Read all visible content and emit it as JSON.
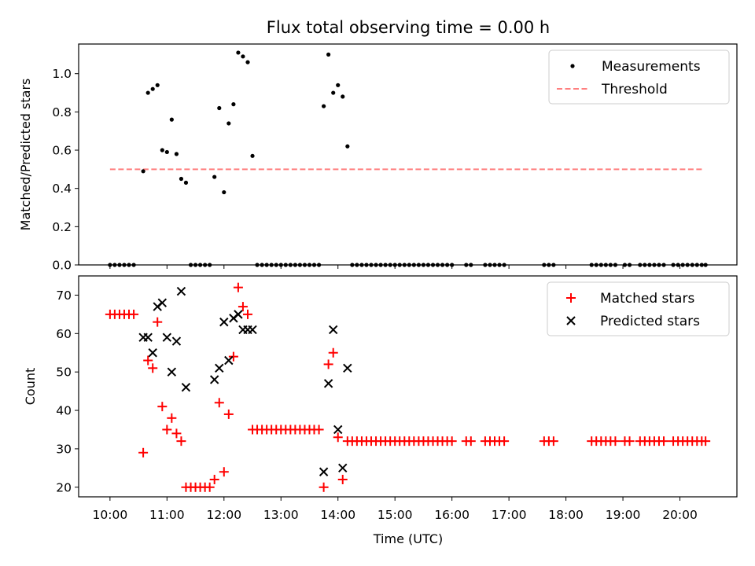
{
  "figure": {
    "title": "Flux total observing time = 0.00 h",
    "xlabel": "Time (UTC)"
  },
  "colors": {
    "measurement": "#000000",
    "threshold": "#ff7f7f",
    "matched": "#ff0000",
    "predicted": "#000000"
  },
  "chart_data": [
    {
      "type": "scatter",
      "name": "ratio-panel",
      "ylabel": "Matched/Predicted stars",
      "xlim": [
        9.45,
        21.0
      ],
      "ylim": [
        0.0,
        1.155
      ],
      "yticks": [
        0.0,
        0.2,
        0.4,
        0.6,
        0.8,
        1.0
      ],
      "ytick_labels": [
        "0.0",
        "0.2",
        "0.4",
        "0.6",
        "0.8",
        "1.0"
      ],
      "legend": [
        "Measurements",
        "Threshold"
      ],
      "legend_position": "top-right",
      "threshold": {
        "name": "Threshold",
        "value": 0.5,
        "x_range": [
          10.0,
          20.42
        ]
      },
      "series": [
        {
          "name": "Measurements",
          "x": [
            10.0,
            10.083,
            10.167,
            10.25,
            10.333,
            10.417,
            10.583,
            10.667,
            10.75,
            10.833,
            10.917,
            11.0,
            11.083,
            11.167,
            11.25,
            11.333,
            11.417,
            11.5,
            11.583,
            11.667,
            11.75,
            11.833,
            11.917,
            12.0,
            12.083,
            12.167,
            12.25,
            12.333,
            12.417,
            12.5,
            12.583,
            12.667,
            12.75,
            12.833,
            12.917,
            13.0,
            13.083,
            13.167,
            13.25,
            13.333,
            13.417,
            13.5,
            13.583,
            13.667,
            13.75,
            13.833,
            13.917,
            14.0,
            14.083,
            14.167,
            14.25,
            14.333,
            14.417,
            14.5,
            14.583,
            14.667,
            14.75,
            14.833,
            14.917,
            15.0,
            15.083,
            15.167,
            15.25,
            15.333,
            15.417,
            15.5,
            15.583,
            15.667,
            15.75,
            15.833,
            15.917,
            16.0,
            16.25,
            16.333,
            16.583,
            16.667,
            16.75,
            16.833,
            16.917,
            17.617,
            17.7,
            17.783,
            18.45,
            18.533,
            18.617,
            18.7,
            18.783,
            18.867,
            19.033,
            19.117,
            19.3,
            19.383,
            19.467,
            19.55,
            19.633,
            19.717,
            19.883,
            19.967,
            20.05,
            20.133,
            20.217,
            20.3,
            20.383,
            20.45
          ],
          "y": [
            0.0,
            0.0,
            0.0,
            0.0,
            0.0,
            0.0,
            0.49,
            0.9,
            0.92,
            0.94,
            0.6,
            0.59,
            0.76,
            0.58,
            0.45,
            0.43,
            0.0,
            0.0,
            0.0,
            0.0,
            0.0,
            0.46,
            0.82,
            0.38,
            0.74,
            0.84,
            1.11,
            1.09,
            1.06,
            0.57,
            0.0,
            0.0,
            0.0,
            0.0,
            0.0,
            0.0,
            0.0,
            0.0,
            0.0,
            0.0,
            0.0,
            0.0,
            0.0,
            0.0,
            0.83,
            1.1,
            0.9,
            0.94,
            0.88,
            0.62,
            0.0,
            0.0,
            0.0,
            0.0,
            0.0,
            0.0,
            0.0,
            0.0,
            0.0,
            0.0,
            0.0,
            0.0,
            0.0,
            0.0,
            0.0,
            0.0,
            0.0,
            0.0,
            0.0,
            0.0,
            0.0,
            0.0,
            0.0,
            0.0,
            0.0,
            0.0,
            0.0,
            0.0,
            0.0,
            0.0,
            0.0,
            0.0,
            0.0,
            0.0,
            0.0,
            0.0,
            0.0,
            0.0,
            0.0,
            0.0,
            0.0,
            0.0,
            0.0,
            0.0,
            0.0,
            0.0,
            0.0,
            0.0,
            0.0,
            0.0,
            0.0,
            0.0,
            0.0,
            0.0
          ]
        }
      ]
    },
    {
      "type": "scatter",
      "name": "count-panel",
      "ylabel": "Count",
      "xlabel": "Time (UTC)",
      "xlim": [
        9.45,
        21.0
      ],
      "ylim": [
        17.5,
        75.0
      ],
      "yticks": [
        20,
        30,
        40,
        50,
        60,
        70
      ],
      "ytick_labels": [
        "20",
        "30",
        "40",
        "50",
        "60",
        "70"
      ],
      "xticks": [
        10,
        11,
        12,
        13,
        14,
        15,
        16,
        17,
        18,
        19,
        20
      ],
      "xtick_labels": [
        "10:00",
        "11:00",
        "12:00",
        "13:00",
        "14:00",
        "15:00",
        "16:00",
        "17:00",
        "18:00",
        "19:00",
        "20:00"
      ],
      "legend": [
        "Matched stars",
        "Predicted stars"
      ],
      "legend_position": "top-right",
      "series": [
        {
          "name": "Matched stars",
          "marker": "plus",
          "x": [
            10.0,
            10.083,
            10.167,
            10.25,
            10.333,
            10.417,
            10.583,
            10.667,
            10.75,
            10.833,
            10.917,
            11.0,
            11.083,
            11.167,
            11.25,
            11.333,
            11.417,
            11.5,
            11.583,
            11.667,
            11.75,
            11.833,
            11.917,
            12.0,
            12.083,
            12.167,
            12.25,
            12.333,
            12.417,
            12.5,
            12.583,
            12.667,
            12.75,
            12.833,
            12.917,
            13.0,
            13.083,
            13.167,
            13.25,
            13.333,
            13.417,
            13.5,
            13.583,
            13.667,
            13.75,
            13.833,
            13.917,
            14.0,
            14.083,
            14.167,
            14.25,
            14.333,
            14.417,
            14.5,
            14.583,
            14.667,
            14.75,
            14.833,
            14.917,
            15.0,
            15.083,
            15.167,
            15.25,
            15.333,
            15.417,
            15.5,
            15.583,
            15.667,
            15.75,
            15.833,
            15.917,
            16.0,
            16.25,
            16.333,
            16.583,
            16.667,
            16.75,
            16.833,
            16.917,
            17.617,
            17.7,
            17.783,
            18.45,
            18.533,
            18.617,
            18.7,
            18.783,
            18.867,
            19.033,
            19.117,
            19.3,
            19.383,
            19.467,
            19.55,
            19.633,
            19.717,
            19.883,
            19.967,
            20.05,
            20.133,
            20.217,
            20.3,
            20.383,
            20.45
          ],
          "y": [
            65,
            65,
            65,
            65,
            65,
            65,
            29,
            53,
            51,
            63,
            41,
            35,
            38,
            34,
            32,
            20,
            20,
            20,
            20,
            20,
            20,
            22,
            42,
            24,
            39,
            54,
            72,
            67,
            65,
            35,
            35,
            35,
            35,
            35,
            35,
            35,
            35,
            35,
            35,
            35,
            35,
            35,
            35,
            35,
            20,
            52,
            55,
            33,
            22,
            32,
            32,
            32,
            32,
            32,
            32,
            32,
            32,
            32,
            32,
            32,
            32,
            32,
            32,
            32,
            32,
            32,
            32,
            32,
            32,
            32,
            32,
            32,
            32,
            32,
            32,
            32,
            32,
            32,
            32,
            32,
            32,
            32,
            32,
            32,
            32,
            32,
            32,
            32,
            32,
            32,
            32,
            32,
            32,
            32,
            32,
            32,
            32,
            32,
            32,
            32,
            32,
            32,
            32,
            32
          ]
        },
        {
          "name": "Predicted stars",
          "marker": "x",
          "x": [
            10.583,
            10.667,
            10.75,
            10.833,
            10.917,
            11.0,
            11.083,
            11.167,
            11.25,
            11.333,
            11.833,
            11.917,
            12.0,
            12.083,
            12.167,
            12.25,
            12.333,
            12.417,
            12.5,
            13.75,
            13.833,
            13.917,
            14.0,
            14.083,
            14.167
          ],
          "y": [
            59,
            59,
            55,
            67,
            68,
            59,
            50,
            58,
            71,
            46,
            48,
            51,
            63,
            53,
            64,
            65,
            61,
            61,
            61,
            24,
            47,
            61,
            35,
            25,
            51
          ]
        }
      ]
    }
  ]
}
